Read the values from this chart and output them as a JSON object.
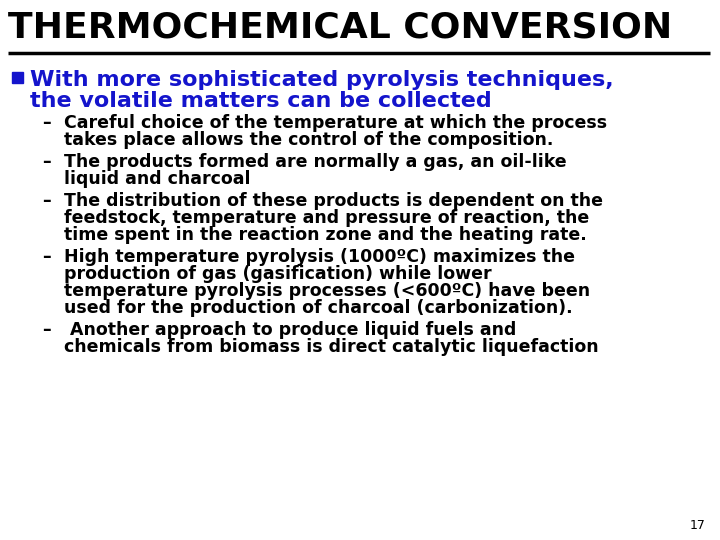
{
  "title": "THERMOCHEMICAL CONVERSION",
  "title_color": "#000000",
  "background_color": "#ffffff",
  "bullet_color": "#1414cc",
  "bullet_text_line1": "With more sophisticated pyrolysis techniques,",
  "bullet_text_line2": "the volatile matters can be collected",
  "sub_bullets": [
    "Careful choice of the temperature at which the process\ntakes place allows the control of the composition.",
    "The products formed are normally a gas, an oil-like\nliquid and charcoal",
    "The distribution of these products is dependent on the\nfeedstock, temperature and pressure of reaction, the\ntime spent in the reaction zone and the heating rate.",
    "High temperature pyrolysis (1000ºC) maximizes the\nproduction of gas (gasification) while lower\ntemperature pyrolysis processes (<600ºC) have been\nused for the production of charcoal (carbonization).",
    " Another approach to produce liquid fuels and\nchemicals from biomass is direct catalytic liquefaction"
  ],
  "page_number": "17"
}
